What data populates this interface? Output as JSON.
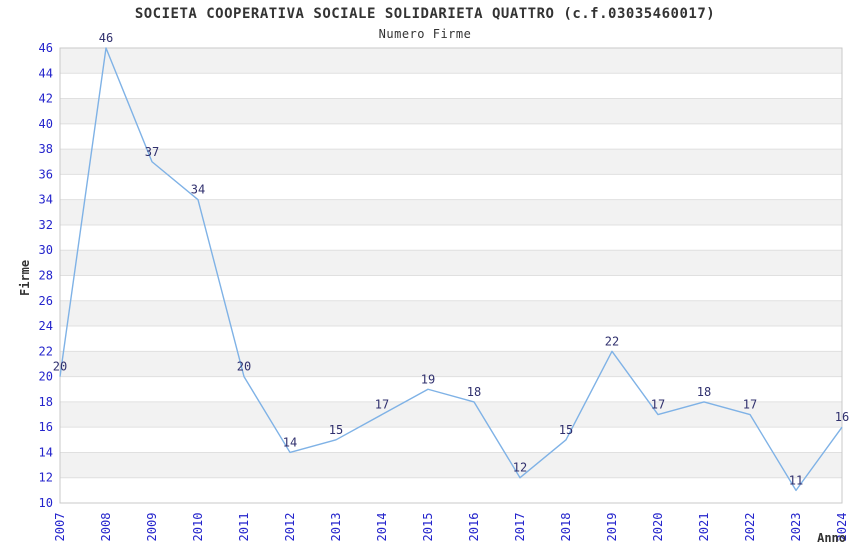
{
  "chart_data": {
    "type": "line",
    "title": "SOCIETA COOPERATIVA SOCIALE SOLIDARIETA QUATTRO (c.f.03035460017)",
    "subtitle": "Numero Firme",
    "xlabel": "Anno",
    "ylabel": "Firme",
    "x": [
      "2007",
      "2008",
      "2009",
      "2010",
      "2011",
      "2012",
      "2013",
      "2014",
      "2015",
      "2016",
      "2017",
      "2018",
      "2019",
      "2020",
      "2021",
      "2022",
      "2023",
      "2024"
    ],
    "series": [
      {
        "name": "Numero Firme",
        "values": [
          20,
          46,
          37,
          34,
          20,
          14,
          15,
          17,
          19,
          18,
          12,
          15,
          22,
          17,
          18,
          17,
          11,
          16
        ]
      }
    ],
    "ylim": [
      10,
      46
    ],
    "ytick_step": 2,
    "grid": "horizontal-bands",
    "legend": "none",
    "point_labels": true,
    "colors": {
      "line": "#7FB2E6",
      "tick_label": "#2424CC",
      "data_label": "#30306E",
      "band_gray": "#F2F2F2",
      "gridline": "#E0E0E0",
      "plot_border": "#C9C9C9",
      "text": "#333333",
      "background": "#FFFFFF"
    }
  }
}
